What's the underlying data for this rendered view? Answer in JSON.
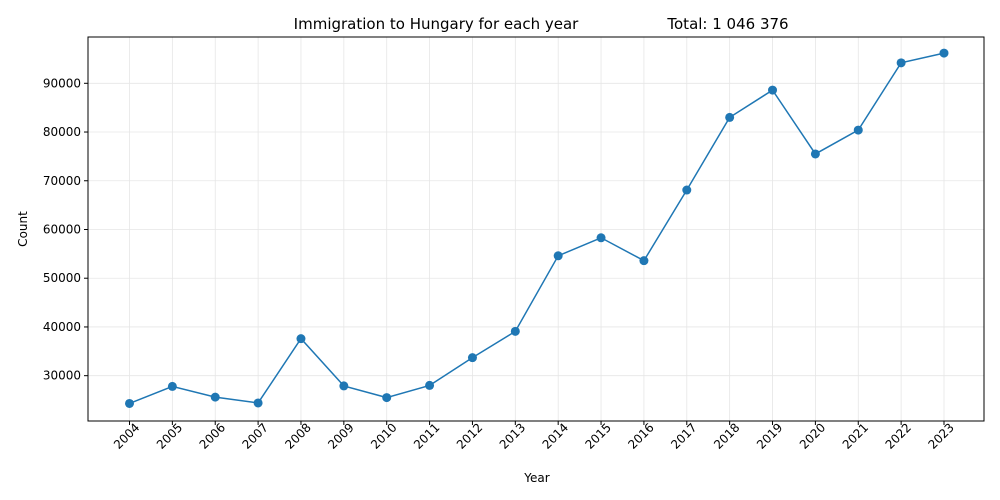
{
  "chart_data": {
    "type": "line",
    "title": "Immigration to Hungary for each year",
    "total_label": "Total: 1 046 376",
    "xlabel": "Year",
    "ylabel": "Count",
    "x": [
      "2004",
      "2005",
      "2006",
      "2007",
      "2008",
      "2009",
      "2010",
      "2011",
      "2012",
      "2013",
      "2014",
      "2015",
      "2016",
      "2017",
      "2018",
      "2019",
      "2020",
      "2021",
      "2022",
      "2023"
    ],
    "series": [
      {
        "values": [
          24300,
          27800,
          25600,
          24400,
          37600,
          27900,
          25500,
          28000,
          33700,
          39100,
          54600,
          58300,
          53600,
          68100,
          83000,
          88600,
          75500,
          80400,
          94200,
          96200
        ],
        "color": "#1f77b4",
        "marker": "circle"
      }
    ],
    "ylim": [
      20700,
      99500
    ],
    "yticks": [
      30000,
      40000,
      50000,
      60000,
      70000,
      80000,
      90000
    ],
    "grid": true
  }
}
